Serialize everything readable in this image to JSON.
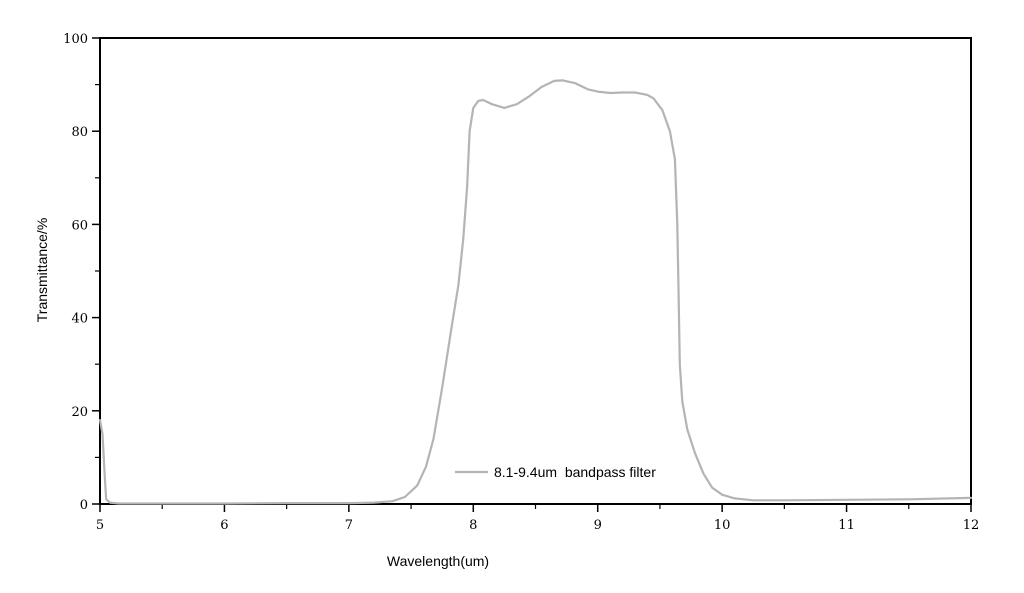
{
  "chart_data": {
    "type": "line",
    "xlabel": "Wavelength(um)",
    "ylabel": "Transmittance/%",
    "xlim": [
      5,
      12
    ],
    "ylim": [
      0,
      100
    ],
    "x_ticks": [
      "5",
      "6",
      "7",
      "8",
      "9",
      "10",
      "11",
      "12"
    ],
    "y_ticks": [
      "0",
      "20",
      "40",
      "60",
      "80",
      "100"
    ],
    "grid": false,
    "legend_position": "bottom-center",
    "series": [
      {
        "name": "8.1-9.4um  bandpass filter",
        "color": "#b4b4b4",
        "points": [
          [
            5.0,
            18.0
          ],
          [
            5.02,
            15.0
          ],
          [
            5.04,
            5.0
          ],
          [
            5.05,
            1.0
          ],
          [
            5.08,
            0.3
          ],
          [
            5.15,
            0.1
          ],
          [
            5.5,
            0.1
          ],
          [
            6.0,
            0.1
          ],
          [
            6.5,
            0.2
          ],
          [
            7.0,
            0.2
          ],
          [
            7.2,
            0.3
          ],
          [
            7.35,
            0.6
          ],
          [
            7.45,
            1.5
          ],
          [
            7.55,
            4.0
          ],
          [
            7.62,
            8.0
          ],
          [
            7.68,
            14.0
          ],
          [
            7.75,
            25.0
          ],
          [
            7.82,
            37.0
          ],
          [
            7.88,
            47.0
          ],
          [
            7.92,
            57.0
          ],
          [
            7.95,
            68.0
          ],
          [
            7.97,
            80.0
          ],
          [
            8.0,
            85.0
          ],
          [
            8.04,
            86.5
          ],
          [
            8.08,
            86.7
          ],
          [
            8.15,
            85.8
          ],
          [
            8.25,
            85.0
          ],
          [
            8.35,
            85.8
          ],
          [
            8.45,
            87.5
          ],
          [
            8.55,
            89.5
          ],
          [
            8.65,
            90.8
          ],
          [
            8.72,
            90.9
          ],
          [
            8.82,
            90.3
          ],
          [
            8.92,
            89.0
          ],
          [
            9.0,
            88.5
          ],
          [
            9.1,
            88.2
          ],
          [
            9.2,
            88.3
          ],
          [
            9.3,
            88.3
          ],
          [
            9.4,
            87.8
          ],
          [
            9.45,
            87.0
          ],
          [
            9.52,
            84.5
          ],
          [
            9.58,
            80.0
          ],
          [
            9.62,
            74.0
          ],
          [
            9.64,
            60.0
          ],
          [
            9.65,
            45.0
          ],
          [
            9.66,
            30.0
          ],
          [
            9.68,
            22.0
          ],
          [
            9.72,
            16.0
          ],
          [
            9.78,
            11.0
          ],
          [
            9.85,
            6.5
          ],
          [
            9.92,
            3.5
          ],
          [
            10.0,
            2.0
          ],
          [
            10.1,
            1.2
          ],
          [
            10.25,
            0.8
          ],
          [
            10.5,
            0.8
          ],
          [
            11.0,
            0.9
          ],
          [
            11.5,
            1.0
          ],
          [
            12.0,
            1.3
          ]
        ]
      }
    ]
  }
}
